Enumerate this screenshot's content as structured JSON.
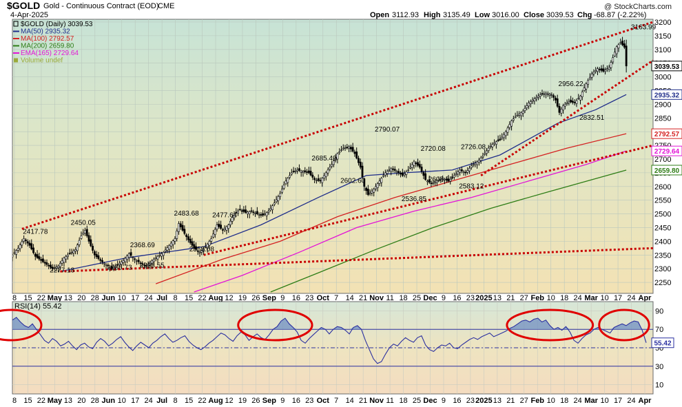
{
  "header": {
    "symbol": "$GOLD",
    "name": "Gold - Continuous Contract (EOD)",
    "exchange": "CME",
    "date": "4-Apr-2025",
    "ohlc": [
      {
        "label": "Open",
        "value": "3112.93"
      },
      {
        "label": "High",
        "value": "3135.49"
      },
      {
        "label": "Low",
        "value": "3016.00"
      },
      {
        "label": "Close",
        "value": "3039.53"
      },
      {
        "label": "Chg",
        "value": "-68.87 (-2.22%)"
      }
    ],
    "watermark": "@ StockCharts.com"
  },
  "legend": [
    {
      "label": "$GOLD (Daily) 3039.53",
      "color": "#000000",
      "marker": "box"
    },
    {
      "label": "MA(50) 2935.32",
      "color": "#1f2d8a",
      "marker": "line"
    },
    {
      "label": "MA(100) 2792.57",
      "color": "#d42121",
      "marker": "line"
    },
    {
      "label": "MA(200) 2659.80",
      "color": "#2e7d16",
      "marker": "line"
    },
    {
      "label": "EMA(165) 2729.64",
      "color": "#e313d6",
      "marker": "line"
    },
    {
      "label": "Volume undef",
      "color": "#9aaa3a",
      "marker": "bars"
    }
  ],
  "chart_data": [
    {
      "type": "line",
      "title": "$GOLD (Daily) 3039.53",
      "chart_style": "candlestick",
      "ylim": [
        2210,
        3210
      ],
      "y_ticks": [
        2250,
        2300,
        2350,
        2400,
        2450,
        2500,
        2550,
        2600,
        2650,
        2700,
        2750,
        2800,
        2850,
        2900,
        2950,
        3000,
        3050,
        3100,
        3150,
        3200
      ],
      "y_tick_labels": [
        "2250",
        "2300",
        "2350",
        "2400",
        "2450",
        "2500",
        "2550",
        "2600",
        "2650",
        "2700",
        "2750",
        "2800",
        "2850",
        "2900",
        "2950",
        "3000",
        "3050",
        "3100",
        "3150",
        "3200"
      ],
      "x_tick_labels": [
        "8",
        "15",
        "22",
        "May",
        "13",
        "20",
        "28",
        "Jun",
        "10",
        "17",
        "24",
        "Jul",
        "8",
        "15",
        "22",
        "Aug",
        "12",
        "19",
        "26",
        "Sep",
        "9",
        "16",
        "23",
        "Oct",
        "7",
        "14",
        "21",
        "Nov",
        "11",
        "18",
        "25",
        "Dec",
        "9",
        "16",
        "23",
        "2025",
        "13",
        "21",
        "27",
        "Feb",
        "10",
        "18",
        "24",
        "Mar",
        "10",
        "17",
        "24",
        "Apr"
      ],
      "x_tick_bold": [
        false,
        false,
        false,
        true,
        false,
        false,
        false,
        true,
        false,
        false,
        false,
        true,
        false,
        false,
        false,
        true,
        false,
        false,
        false,
        true,
        false,
        false,
        false,
        true,
        false,
        false,
        false,
        true,
        false,
        false,
        false,
        true,
        false,
        false,
        false,
        true,
        false,
        false,
        false,
        true,
        false,
        false,
        false,
        true,
        false,
        false,
        false,
        true
      ],
      "grid": true,
      "legend_position": "top-left",
      "close_path": [
        [
          0,
          2350
        ],
        [
          3,
          2375
        ],
        [
          6,
          2410
        ],
        [
          9,
          2385
        ],
        [
          12,
          2345
        ],
        [
          15,
          2330
        ],
        [
          18,
          2315
        ],
        [
          21,
          2300
        ],
        [
          24,
          2310
        ],
        [
          27,
          2340
        ],
        [
          30,
          2355
        ],
        [
          33,
          2370
        ],
        [
          36,
          2420
        ],
        [
          38,
          2440
        ],
        [
          40,
          2400
        ],
        [
          43,
          2350
        ],
        [
          46,
          2330
        ],
        [
          49,
          2315
        ],
        [
          52,
          2300
        ],
        [
          55,
          2315
        ],
        [
          58,
          2330
        ],
        [
          61,
          2355
        ],
        [
          64,
          2335
        ],
        [
          67,
          2320
        ],
        [
          70,
          2310
        ],
        [
          73,
          2330
        ],
        [
          76,
          2345
        ],
        [
          79,
          2360
        ],
        [
          82,
          2385
        ],
        [
          85,
          2410
        ],
        [
          87,
          2465
        ],
        [
          89,
          2440
        ],
        [
          92,
          2405
        ],
        [
          95,
          2375
        ],
        [
          98,
          2360
        ],
        [
          101,
          2380
        ],
        [
          104,
          2410
        ],
        [
          107,
          2460
        ],
        [
          110,
          2440
        ],
        [
          113,
          2460
        ],
        [
          116,
          2500
        ],
        [
          119,
          2515
        ],
        [
          122,
          2505
        ],
        [
          125,
          2510
        ],
        [
          128,
          2500
        ],
        [
          131,
          2495
        ],
        [
          134,
          2510
        ],
        [
          137,
          2540
        ],
        [
          140,
          2575
        ],
        [
          143,
          2620
        ],
        [
          146,
          2650
        ],
        [
          149,
          2660
        ],
        [
          152,
          2655
        ],
        [
          155,
          2650
        ],
        [
          158,
          2625
        ],
        [
          161,
          2620
        ],
        [
          164,
          2650
        ],
        [
          167,
          2680
        ],
        [
          170,
          2720
        ],
        [
          173,
          2740
        ],
        [
          176,
          2745
        ],
        [
          179,
          2720
        ],
        [
          182,
          2670
        ],
        [
          184,
          2600
        ],
        [
          186,
          2570
        ],
        [
          189,
          2590
        ],
        [
          192,
          2620
        ],
        [
          195,
          2650
        ],
        [
          198,
          2665
        ],
        [
          201,
          2655
        ],
        [
          204,
          2640
        ],
        [
          207,
          2660
        ],
        [
          210,
          2690
        ],
        [
          213,
          2670
        ],
        [
          216,
          2625
        ],
        [
          219,
          2610
        ],
        [
          222,
          2620
        ],
        [
          225,
          2630
        ],
        [
          228,
          2620
        ],
        [
          231,
          2640
        ],
        [
          234,
          2660
        ],
        [
          237,
          2650
        ],
        [
          240,
          2675
        ],
        [
          243,
          2690
        ],
        [
          246,
          2710
        ],
        [
          249,
          2740
        ],
        [
          252,
          2760
        ],
        [
          255,
          2770
        ],
        [
          258,
          2800
        ],
        [
          261,
          2840
        ],
        [
          264,
          2860
        ],
        [
          267,
          2875
        ],
        [
          270,
          2905
        ],
        [
          273,
          2920
        ],
        [
          276,
          2935
        ],
        [
          279,
          2940
        ],
        [
          282,
          2935
        ],
        [
          284,
          2915
        ],
        [
          286,
          2870
        ],
        [
          288,
          2895
        ],
        [
          291,
          2910
        ],
        [
          294,
          2905
        ],
        [
          297,
          2930
        ],
        [
          300,
          2975
        ],
        [
          303,
          3010
        ],
        [
          306,
          3030
        ],
        [
          309,
          3020
        ],
        [
          312,
          3035
        ],
        [
          314,
          3070
        ],
        [
          316,
          3110
        ],
        [
          318,
          3125
        ],
        [
          320,
          3108
        ],
        [
          321,
          3039.53
        ]
      ],
      "ohlc_last": {
        "open": 3112.93,
        "high": 3135.49,
        "low": 3016.0,
        "close": 3039.53
      },
      "moving_averages": [
        {
          "name": "MA(50)",
          "color": "#1f2d8a",
          "last": 2935.32,
          "path": [
            [
              25,
              2290
            ],
            [
              60,
              2340
            ],
            [
              100,
              2380
            ],
            [
              130,
              2460
            ],
            [
              160,
              2560
            ],
            [
              185,
              2640
            ],
            [
              205,
              2650
            ],
            [
              230,
              2660
            ],
            [
              255,
              2715
            ],
            [
              285,
              2830
            ],
            [
              305,
              2880
            ],
            [
              321,
              2935.32
            ]
          ]
        },
        {
          "name": "MA(100)",
          "color": "#d42121",
          "last": 2792.57,
          "path": [
            [
              75,
              2245
            ],
            [
              110,
              2335
            ],
            [
              140,
              2400
            ],
            [
              170,
              2490
            ],
            [
              200,
              2560
            ],
            [
              230,
              2620
            ],
            [
              260,
              2680
            ],
            [
              290,
              2740
            ],
            [
              321,
              2792.57
            ]
          ]
        },
        {
          "name": "EMA(165)",
          "color": "#e313d6",
          "last": 2729.64,
          "path": [
            [
              95,
              2215
            ],
            [
              120,
              2275
            ],
            [
              150,
              2360
            ],
            [
              180,
              2450
            ],
            [
              210,
              2510
            ],
            [
              240,
              2560
            ],
            [
              270,
              2620
            ],
            [
              300,
              2680
            ],
            [
              321,
              2729.64
            ]
          ]
        },
        {
          "name": "MA(200)",
          "color": "#2e7d16",
          "last": 2659.8,
          "path": [
            [
              135,
              2215
            ],
            [
              160,
              2285
            ],
            [
              190,
              2370
            ],
            [
              220,
              2450
            ],
            [
              250,
              2520
            ],
            [
              280,
              2580
            ],
            [
              321,
              2659.8
            ]
          ]
        }
      ],
      "trend_lines": [
        {
          "name": "upper channel",
          "color": "#c80000",
          "points": [
            [
              5,
              2445
            ],
            [
              335,
              3200
            ]
          ]
        },
        {
          "name": "recent uptrend",
          "color": "#c80000",
          "points": [
            [
              245,
              2640
            ],
            [
              335,
              3060
            ]
          ]
        },
        {
          "name": "mid support",
          "color": "#c80000",
          "points": [
            [
              100,
              2350
            ],
            [
              335,
              2750
            ]
          ]
        },
        {
          "name": "long support",
          "color": "#c80000",
          "points": [
            [
              25,
              2290
            ],
            [
              335,
              2375
            ]
          ]
        }
      ],
      "annotations": [
        {
          "text": "2417.78",
          "x": 12,
          "y": 2417.78
        },
        {
          "text": "2450.05",
          "x": 37,
          "y": 2450.05
        },
        {
          "text": "2277.18",
          "x": 26,
          "y": 2277.18
        },
        {
          "text": "2368.69",
          "x": 68,
          "y": 2368.69
        },
        {
          "text": "2286.73",
          "x": 56,
          "y": 2286.73
        },
        {
          "text": "2293.55",
          "x": 73,
          "y": 2293.55
        },
        {
          "text": "2483.68",
          "x": 91,
          "y": 2483.68
        },
        {
          "text": "2477.64",
          "x": 111,
          "y": 2477.64
        },
        {
          "text": "2353.08",
          "x": 99,
          "y": 2353.08
        },
        {
          "text": "2685.49",
          "x": 163,
          "y": 2685.49
        },
        {
          "text": "2602.60",
          "x": 178,
          "y": 2602.6
        },
        {
          "text": "2790.07",
          "x": 196,
          "y": 2790.07
        },
        {
          "text": "2720.08",
          "x": 220,
          "y": 2720.08
        },
        {
          "text": "2726.08",
          "x": 241,
          "y": 2726.08
        },
        {
          "text": "2608.67",
          "x": 224,
          "y": 2608.67
        },
        {
          "text": "2536.85",
          "x": 210,
          "y": 2536.85
        },
        {
          "text": "2583.12",
          "x": 240,
          "y": 2583.12
        },
        {
          "text": "2956.22",
          "x": 292,
          "y": 2956.22
        },
        {
          "text": "2832.51",
          "x": 303,
          "y": 2832.51
        },
        {
          "text": "3163.99",
          "x": 330,
          "y": 3163.99
        }
      ],
      "price_tags": [
        {
          "text": "3039.53",
          "color": "#000000"
        },
        {
          "text": "2935.32",
          "color": "#1f2d8a"
        },
        {
          "text": "2792.57",
          "color": "#d42121"
        },
        {
          "text": "2729.64",
          "color": "#e313d6"
        },
        {
          "text": "2659.80",
          "color": "#2e7d16"
        }
      ]
    },
    {
      "type": "line",
      "title": "RSI(14) 55.42",
      "ylim": [
        0,
        100
      ],
      "y_ticks": [
        10,
        30,
        50,
        70,
        90
      ],
      "y_tick_labels": [
        "10",
        "30",
        "50",
        "70",
        "90"
      ],
      "overbought": 70,
      "oversold": 30,
      "mid": 50,
      "series_color": "#2a2fa0",
      "last": 55.42,
      "values": [
        80,
        83,
        78,
        74,
        72,
        76,
        70,
        64,
        58,
        55,
        60,
        57,
        52,
        54,
        57,
        52,
        48,
        53,
        55,
        51,
        49,
        56,
        60,
        57,
        52,
        55,
        59,
        62,
        56,
        51,
        47,
        52,
        56,
        53,
        50,
        55,
        58,
        62,
        65,
        60,
        56,
        58,
        61,
        63,
        57,
        53,
        50,
        48,
        51,
        55,
        58,
        62,
        66,
        64,
        60,
        57,
        63,
        67,
        64,
        58,
        62,
        65,
        61,
        59,
        64,
        70,
        73,
        79,
        82,
        76,
        72,
        67,
        58,
        55,
        60,
        64,
        68,
        72,
        70,
        65,
        70,
        73,
        72,
        69,
        65,
        72,
        74,
        70,
        58,
        48,
        38,
        33,
        35,
        43,
        50,
        54,
        52,
        57,
        61,
        58,
        56,
        61,
        63,
        53,
        48,
        46,
        50,
        53,
        52,
        55,
        50,
        49,
        53,
        56,
        59,
        61,
        59,
        62,
        64,
        66,
        62,
        64,
        66,
        68,
        71,
        73,
        76,
        79,
        80,
        78,
        81,
        82,
        78,
        80,
        74,
        70,
        72,
        69,
        73,
        67,
        58,
        55,
        60,
        64,
        66,
        70,
        72,
        70,
        68,
        66,
        72,
        74,
        76,
        74,
        77,
        79,
        78,
        69,
        55.42
      ],
      "highlight_circles": [
        {
          "label": "circle-1",
          "x_from": 0,
          "x_to": 8
        },
        {
          "label": "circle-2",
          "x_from": 58,
          "x_to": 73
        },
        {
          "label": "circle-3",
          "x_from": 125,
          "x_to": 143
        },
        {
          "label": "circle-4",
          "x_from": 148,
          "x_to": 157
        }
      ]
    }
  ]
}
